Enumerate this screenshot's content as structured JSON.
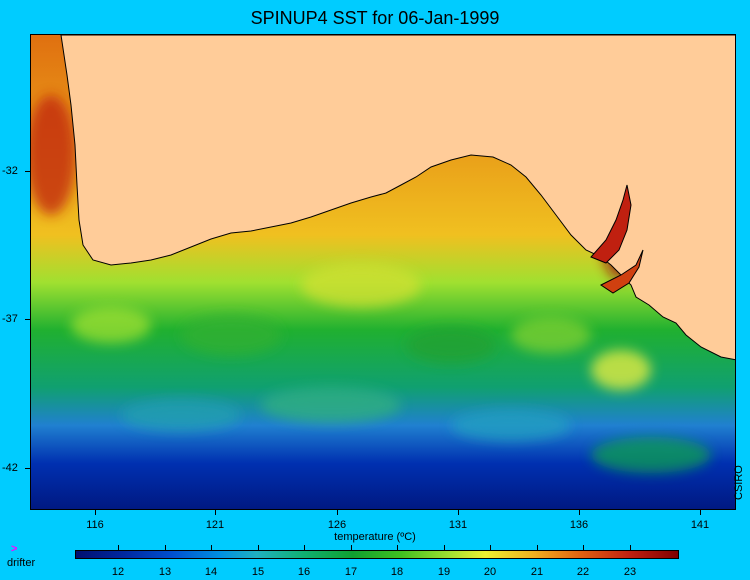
{
  "title": "SPINUP4 SST for 06-Jan-1999",
  "axes": {
    "lat_ticks": [
      "-32",
      "-37",
      "-42"
    ],
    "lon_ticks": [
      "116",
      "121",
      "126",
      "131",
      "136",
      "141"
    ]
  },
  "credit": "CSIRO",
  "legend": {
    "title": "temperature (ºC)",
    "drifter_marker": ">",
    "drifter_label": "drifter",
    "ticks": [
      "12",
      "13",
      "14",
      "15",
      "16",
      "17",
      "18",
      "19",
      "20",
      "21",
      "22",
      "23"
    ]
  },
  "colors": {
    "background": "#00ccff",
    "land": "#ffcc99",
    "drifter": "#ff00ff"
  }
}
